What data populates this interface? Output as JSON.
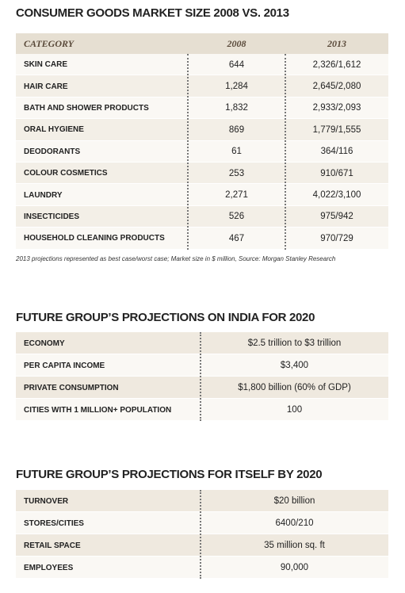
{
  "tables": [
    {
      "title": "CONSUMER GOODS MARKET SIZE 2008 VS. 2013",
      "header": [
        "CATEGORY",
        "2008",
        "2013"
      ],
      "rows": [
        [
          "SKIN CARE",
          "644",
          "2,326/1,612"
        ],
        [
          "HAIR CARE",
          "1,284",
          "2,645/2,080"
        ],
        [
          "BATH AND SHOWER PRODUCTS",
          "1,832",
          "2,933/2,093"
        ],
        [
          "ORAL HYGIENE",
          "869",
          "1,779/1,555"
        ],
        [
          "DEODORANTS",
          "61",
          "364/116"
        ],
        [
          "COLOUR COSMETICS",
          "253",
          "910/671"
        ],
        [
          "LAUNDRY",
          "2,271",
          "4,022/3,100"
        ],
        [
          "INSECTICIDES",
          "526",
          "975/942"
        ],
        [
          "HOUSEHOLD CLEANING PRODUCTS",
          "467",
          "970/729"
        ]
      ],
      "note": "2013 projections represented as best case/worst case; Market size in $ million, Source: Morgan Stanley Research"
    },
    {
      "title": "FUTURE GROUP’S PROJECTIONS ON INDIA FOR 2020",
      "rows": [
        [
          "ECONOMY",
          "$2.5 trillion to $3 trillion"
        ],
        [
          "PER CAPITA INCOME",
          "$3,400"
        ],
        [
          "PRIVATE CONSUMPTION",
          "$1,800 billion (60% of GDP)"
        ],
        [
          "CITIES WITH 1 MILLION+ POPULATION",
          "100"
        ]
      ]
    },
    {
      "title": "FUTURE GROUP’S PROJECTIONS FOR ITSELF BY 2020",
      "rows": [
        [
          "TURNOVER",
          "$20 billion"
        ],
        [
          "STORES/CITIES",
          "6400/210"
        ],
        [
          "RETAIL SPACE",
          "35 million sq. ft"
        ],
        [
          "EMPLOYEES",
          "90,000"
        ]
      ]
    }
  ]
}
